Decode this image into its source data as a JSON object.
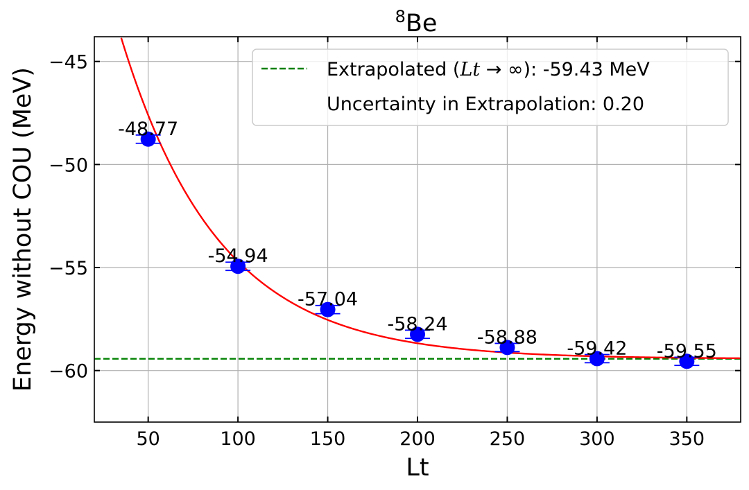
{
  "chart_data": {
    "type": "scatter",
    "title_base": "Be",
    "title_superscript": "8",
    "xlabel": "Lt",
    "ylabel": "Energy without COU (MeV)",
    "xlim": [
      20,
      380
    ],
    "ylim": [
      -62.5,
      -43.8
    ],
    "xticks": [
      50,
      100,
      150,
      200,
      250,
      300,
      350
    ],
    "yticks": [
      -45,
      -50,
      -55,
      -60
    ],
    "ytick_labels": [
      "−45",
      "−50",
      "−55",
      "−60"
    ],
    "grid": true,
    "points": {
      "x": [
        50,
        100,
        150,
        200,
        250,
        300,
        350
      ],
      "y": [
        -48.77,
        -54.94,
        -57.04,
        -58.24,
        -58.88,
        -59.42,
        -59.55
      ],
      "labels": [
        "-48.77",
        "-54.94",
        "-57.04",
        "-58.24",
        "-58.88",
        "-59.42",
        "-59.55"
      ],
      "yerr": [
        0.2,
        0.2,
        0.2,
        0.2,
        0.2,
        0.2,
        0.2
      ],
      "color": "#0000ff"
    },
    "fit": {
      "model": "a + b*exp(-x/c)",
      "a": -59.43,
      "b": 29.6,
      "c": 54.5,
      "color": "#ff0000"
    },
    "extrapolated": {
      "value": -59.43,
      "color": "#008000"
    },
    "legend": {
      "position": "top-right",
      "extrapolated_prefix": "Extrapolated (",
      "extrapolated_math": "Lt",
      "extrapolated_arrow": " → ∞",
      "extrapolated_suffix": "): -59.43 MeV",
      "uncertainty_text": "Uncertainty in Extrapolation: 0.20"
    }
  }
}
